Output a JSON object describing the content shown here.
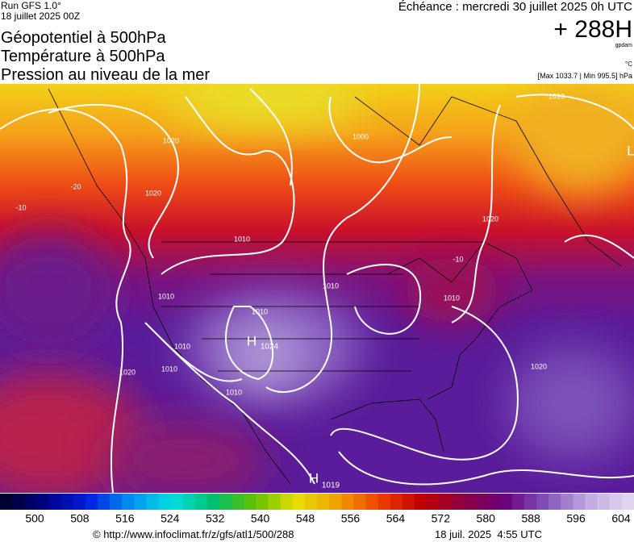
{
  "header": {
    "run": "Run GFS 1.0°",
    "run_date": "18 juillet 2025 00Z",
    "valid": "Échéance : mercredi 30 juillet 2025 0h UTC",
    "titles": [
      "Géopotentiel à 500hPa",
      "Température à 500hPa",
      "Pression au niveau de la mer"
    ],
    "lead": "+ 288H",
    "unit_gp": "gpdam",
    "unit_temp": "°C",
    "pressure_range": "[Max 1033.7 | Min 995.5] hPa"
  },
  "map": {
    "labels": [
      "1010",
      "1020",
      "1020",
      "1010",
      "1000",
      "1010",
      "1010",
      "1010",
      "1020",
      "1010",
      "1010",
      "1020",
      "1010",
      "1010",
      "1020",
      "-10",
      "-10",
      "-20",
      "1024",
      "1019",
      "H",
      "H",
      "L"
    ]
  },
  "legend": {
    "labels": [
      "500",
      "508",
      "516",
      "524",
      "532",
      "540",
      "548",
      "556",
      "564",
      "572",
      "580",
      "588",
      "596",
      "604"
    ]
  },
  "footer": {
    "url": "© http://www.infoclimat.fr/z/gfs/atl1/500/288",
    "generated": "18 juil. 2025  4:55 UTC"
  }
}
